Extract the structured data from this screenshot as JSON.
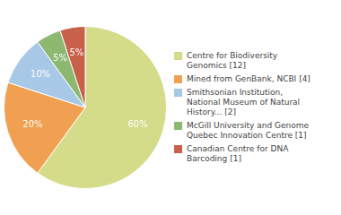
{
  "chart_data": {
    "type": "pie",
    "categories": [
      "Centre for Biodiversity\nGenomics [12]",
      "Mined from GenBank, NCBI [4]",
      "Smithsonian Institution,\nNational Museum of Natural\nHistory... [2]",
      "McGill University and Genome\nQuebec Innovation Centre [1]",
      "Canadian Centre for DNA\nBarcoding [1]"
    ],
    "values": [
      60,
      20,
      10,
      5,
      5
    ],
    "value_labels": [
      "60%",
      "20%",
      "10%",
      "5%",
      "5%"
    ],
    "colors": [
      "#d4dc8a",
      "#f0a050",
      "#a8c8e8",
      "#8db870",
      "#c8604a"
    ],
    "data_labels": true,
    "legend": "right"
  }
}
